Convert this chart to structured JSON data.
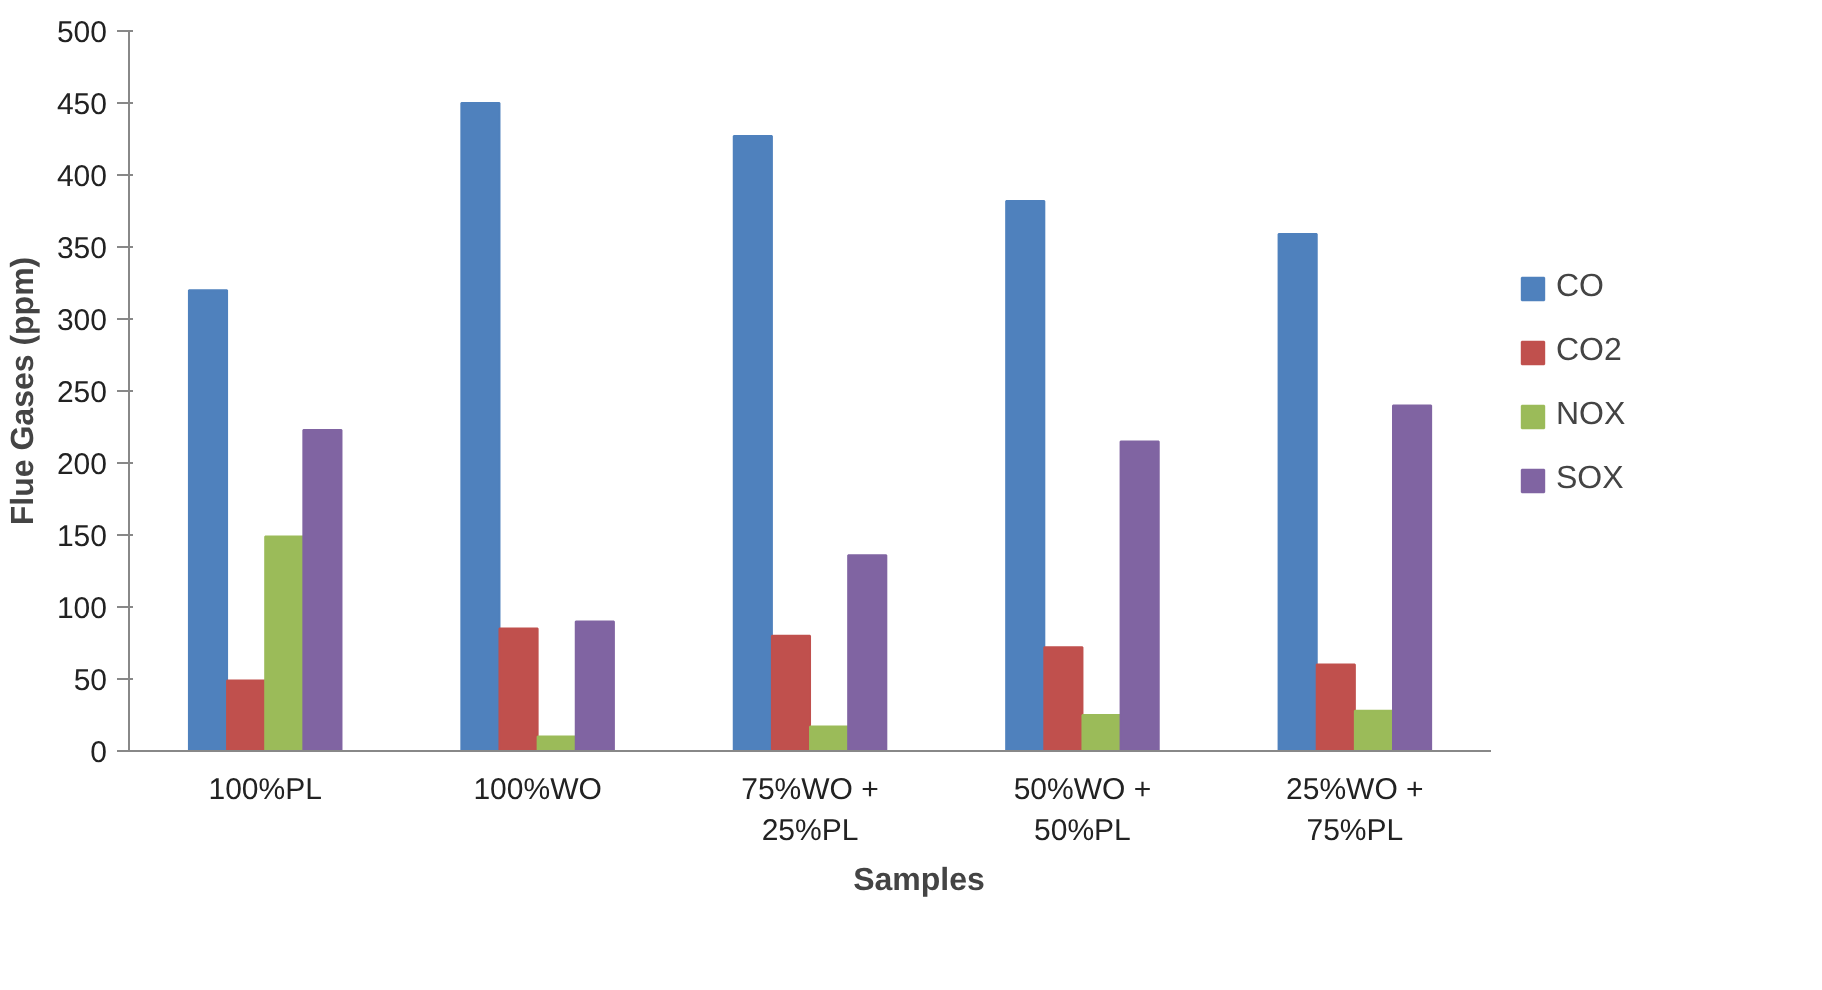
{
  "chart_data": {
    "type": "bar",
    "xlabel": "Samples",
    "ylabel": "Flue Gases (ppm)",
    "categories": [
      "100%PL",
      "100%WO",
      "75%WO +\n25%PL",
      "50%WO +\n50%PL",
      "25%WO +\n75%PL"
    ],
    "series": [
      {
        "name": "CO",
        "color": "#4f81bd",
        "values": [
          320,
          450,
          427,
          382,
          359
        ]
      },
      {
        "name": "CO2",
        "color": "#c0504d",
        "values": [
          49,
          85,
          80,
          72,
          60
        ]
      },
      {
        "name": "NOX",
        "color": "#9bbb59",
        "values": [
          149,
          10,
          17,
          25,
          28
        ]
      },
      {
        "name": "SOX",
        "color": "#8064a2",
        "values": [
          223,
          90,
          136,
          215,
          240
        ]
      }
    ],
    "ylim": [
      0,
      500
    ],
    "yticks": [
      0,
      50,
      100,
      150,
      200,
      250,
      300,
      350,
      400,
      450,
      500
    ],
    "grid": false,
    "legend": "right"
  }
}
